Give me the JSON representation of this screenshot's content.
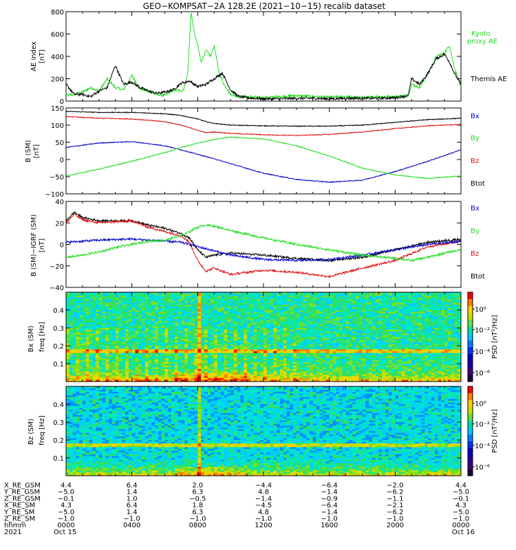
{
  "title": "GEO−KOMPSAT−2A 128.2E (2021−10−15) recalib dataset",
  "colors": {
    "black": "#000000",
    "green": "#22dd22",
    "red": "#dd1111",
    "blue": "#0000cc"
  },
  "chart_data": [
    {
      "type": "line",
      "panel": "ae_index",
      "ylabel": "AE index [nT]",
      "ylim": [
        0,
        800
      ],
      "yticks": [
        "0",
        "200",
        "400",
        "600",
        "800"
      ],
      "x_range_hours": [
        0,
        24
      ],
      "series": [
        {
          "name": "Kyoto proxy AE",
          "color": "green",
          "x": [
            0,
            0.5,
            1,
            1.5,
            2,
            2.5,
            3,
            3.5,
            4,
            4.5,
            5,
            5.5,
            6,
            6.5,
            7,
            7.2,
            7.4,
            7.6,
            7.8,
            8,
            8.2,
            8.5,
            8.8,
            9,
            9.3,
            9.6,
            10,
            10.5,
            11,
            12,
            13,
            14,
            15,
            16,
            17,
            18,
            19,
            20,
            20.8,
            21,
            21.5,
            22,
            22.5,
            23,
            23.3,
            23.6,
            24
          ],
          "y": [
            50,
            60,
            80,
            120,
            90,
            200,
            120,
            100,
            230,
            110,
            90,
            60,
            50,
            100,
            90,
            120,
            250,
            800,
            600,
            500,
            350,
            450,
            400,
            500,
            250,
            150,
            60,
            40,
            40,
            30,
            40,
            50,
            40,
            35,
            40,
            30,
            40,
            40,
            50,
            150,
            120,
            250,
            400,
            430,
            500,
            300,
            120
          ]
        },
        {
          "name": "Themis AE",
          "color": "black",
          "x": [
            0,
            0.5,
            1,
            1.5,
            2,
            2.5,
            3,
            3.2,
            3.5,
            4,
            4.5,
            5,
            5.5,
            6,
            6.5,
            7,
            7.5,
            8,
            8.5,
            9,
            9.5,
            10,
            10.5,
            11,
            12,
            13,
            14,
            15,
            16,
            17,
            18,
            19,
            20,
            20.8,
            21,
            21.5,
            22,
            22.5,
            23,
            23.3,
            23.6,
            24
          ],
          "y": [
            150,
            60,
            60,
            40,
            90,
            120,
            320,
            250,
            150,
            170,
            120,
            90,
            70,
            80,
            100,
            160,
            180,
            130,
            150,
            200,
            250,
            100,
            40,
            30,
            20,
            20,
            25,
            25,
            20,
            25,
            25,
            25,
            30,
            50,
            200,
            150,
            250,
            380,
            420,
            350,
            250,
            150
          ]
        }
      ],
      "legend": [
        "Kyoto proxy AE",
        "Themis AE"
      ]
    },
    {
      "type": "line",
      "panel": "b_sm",
      "ylabel": "B (SM) [nT]",
      "ylim": [
        -100,
        150
      ],
      "yticks": [
        "−100",
        "−50",
        "0",
        "50",
        "100",
        "150"
      ],
      "series": [
        {
          "name": "Btot",
          "color": "black",
          "x": [
            0,
            2,
            4,
            6,
            7,
            8,
            8.5,
            9,
            10,
            12,
            14,
            16,
            18,
            20,
            22,
            24
          ],
          "y": [
            140,
            137,
            137,
            133,
            128,
            118,
            110,
            105,
            100,
            98,
            97,
            97,
            100,
            108,
            116,
            120
          ]
        },
        {
          "name": "Bz",
          "color": "red",
          "x": [
            0,
            2,
            4,
            6,
            7,
            8,
            8.5,
            9,
            10,
            12,
            14,
            16,
            18,
            20,
            22,
            24
          ],
          "y": [
            125,
            120,
            118,
            110,
            100,
            85,
            78,
            80,
            76,
            72,
            70,
            73,
            80,
            90,
            98,
            102
          ]
        },
        {
          "name": "Bx",
          "color": "blue",
          "x": [
            0,
            2,
            4,
            6,
            7,
            8,
            9,
            10,
            12,
            14,
            16,
            18,
            20,
            22,
            24
          ],
          "y": [
            35,
            48,
            52,
            40,
            28,
            15,
            2,
            -12,
            -40,
            -58,
            -66,
            -60,
            -35,
            -5,
            28
          ]
        },
        {
          "name": "By",
          "color": "green",
          "x": [
            0,
            2,
            4,
            6,
            7,
            8,
            9,
            10,
            12,
            14,
            16,
            18,
            20,
            22,
            24
          ],
          "y": [
            -48,
            -28,
            -5,
            20,
            35,
            48,
            58,
            65,
            60,
            40,
            10,
            -25,
            -45,
            -55,
            -48
          ]
        }
      ],
      "legend": [
        "Bx",
        "By",
        "Bz",
        "Btot"
      ]
    },
    {
      "type": "line",
      "panel": "b_minus_igrf",
      "ylabel": "B (SM)−IGRF (SM) [nT]",
      "ylim": [
        -40,
        40
      ],
      "yticks": [
        "−40",
        "−20",
        "0",
        "20",
        "40"
      ],
      "series": [
        {
          "name": "Btot",
          "color": "black",
          "x": [
            0,
            0.5,
            1,
            2,
            3,
            4,
            5,
            6,
            7,
            7.5,
            8,
            8.5,
            9,
            10,
            12,
            14,
            16,
            18,
            20,
            22,
            24
          ],
          "y": [
            22,
            30,
            25,
            22,
            22,
            22,
            18,
            15,
            10,
            6,
            -5,
            -12,
            -10,
            -8,
            -10,
            -13,
            -15,
            -12,
            -5,
            2,
            5
          ]
        },
        {
          "name": "Bz",
          "color": "red",
          "x": [
            0,
            0.5,
            1,
            2,
            3,
            4,
            5,
            6,
            7,
            7.5,
            8,
            8.5,
            9,
            10,
            12,
            14,
            16,
            18,
            20,
            22,
            24
          ],
          "y": [
            20,
            28,
            23,
            20,
            21,
            22,
            16,
            12,
            8,
            2,
            -15,
            -25,
            -22,
            -28,
            -24,
            -26,
            -30,
            -22,
            -15,
            -2,
            3
          ]
        },
        {
          "name": "Bx",
          "color": "blue",
          "x": [
            0,
            2,
            4,
            5,
            6,
            7,
            7.5,
            8,
            8.5,
            9,
            10,
            12,
            14,
            16,
            18,
            20,
            22,
            24
          ],
          "y": [
            2,
            4,
            5,
            4,
            3,
            2,
            0,
            -2,
            -4,
            -6,
            -10,
            -14,
            -15,
            -14,
            -10,
            -5,
            0,
            3
          ]
        },
        {
          "name": "By",
          "color": "green",
          "x": [
            0,
            1,
            2,
            3,
            4,
            5,
            6,
            7,
            7.5,
            8,
            8.5,
            9,
            10,
            12,
            14,
            16,
            18,
            20,
            21,
            22,
            23,
            24
          ],
          "y": [
            -12,
            -10,
            -7,
            -3,
            0,
            3,
            4,
            8,
            12,
            16,
            18,
            17,
            13,
            6,
            0,
            -5,
            -10,
            -13,
            -15,
            -12,
            -8,
            -5
          ]
        }
      ],
      "legend": [
        "Bx",
        "By",
        "Bz",
        "Btot"
      ]
    },
    {
      "type": "heatmap",
      "panel": "bx_spectrogram",
      "ylabel": "Bx (SM)  freq [Hz]",
      "ylim": [
        0,
        0.5
      ],
      "yticks": [
        "0.1",
        "0.2",
        "0.3",
        "0.4"
      ],
      "colorbar_label": "PSD [nT²/Hz]",
      "colorbar_ticks": [
        "10⁰",
        "10⁻²",
        "10⁻⁴",
        "10⁻⁶"
      ]
    },
    {
      "type": "heatmap",
      "panel": "bz_spectrogram",
      "ylabel": "Bz (SM)  freq [Hz]",
      "ylim": [
        0,
        0.5
      ],
      "yticks": [
        "0.1",
        "0.2",
        "0.3",
        "0.4"
      ],
      "colorbar_label": "PSD [nT²/Hz]",
      "colorbar_ticks": [
        "10⁰",
        "10⁻²",
        "10⁻⁴",
        "10⁻⁶"
      ]
    }
  ],
  "labels": {
    "ae_ylabel_1": "AE index",
    "ae_ylabel_2": "[nT]",
    "kyoto_1": "Kyoto",
    "kyoto_2": "proxy AE",
    "themis": "Themis AE",
    "bsm_ylabel_1": "B (SM)",
    "bsm_ylabel_2": "[nT]",
    "igrf_ylabel_1": "B (SM)−IGRF (SM)",
    "igrf_ylabel_2": "[nT]",
    "bx_ylabel_1": "Bx (SM)",
    "bx_ylabel_2": "freq [Hz]",
    "bz_ylabel_1": "Bz (SM)",
    "bz_ylabel_2": "freq [Hz]",
    "psd": "PSD [nT²/Hz]",
    "bx": "Bx",
    "by": "By",
    "bz": "Bz",
    "btot": "Btot"
  },
  "ephemeris": {
    "rows": [
      {
        "label": "X_RE_GSM",
        "values": [
          "4.4",
          "6.4",
          "2.0",
          "−4.4",
          "−6.4",
          "−2.0",
          "4.4"
        ]
      },
      {
        "label": "Y_RE_GSM",
        "values": [
          "−5.0",
          "1.4",
          "6.3",
          "4.8",
          "−1.4",
          "−6.2",
          "−5.0"
        ]
      },
      {
        "label": "Z_RE_GSM",
        "values": [
          "−0.1",
          "1.0",
          "−0.5",
          "−1.4",
          "−0.9",
          "−1.1",
          "−0.1"
        ]
      },
      {
        "label": "X_RE_SM",
        "values": [
          "4.3",
          "6.4",
          "1.8",
          "−4.5",
          "−6.4",
          "−2.1",
          "4.3"
        ]
      },
      {
        "label": "Y_RE_SM",
        "values": [
          "−5.0",
          "1.4",
          "6.3",
          "4.8",
          "−1.4",
          "−6.2",
          "−5.0"
        ]
      },
      {
        "label": "Z_RE_SM",
        "values": [
          "−1.0",
          "−1.0",
          "−1.0",
          "−1.0",
          "−1.0",
          "−1.0",
          "−1.0"
        ]
      },
      {
        "label": "hhmm",
        "values": [
          "0000",
          "0400",
          "0800",
          "1200",
          "1600",
          "2000",
          "0000"
        ]
      },
      {
        "label": "2021",
        "values": [
          "Oct 15",
          "",
          "",
          "",
          "",
          "",
          "Oct 16"
        ]
      }
    ]
  }
}
